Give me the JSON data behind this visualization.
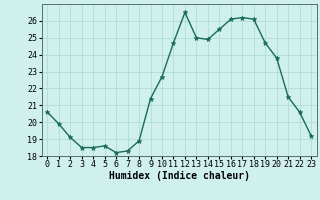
{
  "x": [
    0,
    1,
    2,
    3,
    4,
    5,
    6,
    7,
    8,
    9,
    10,
    11,
    12,
    13,
    14,
    15,
    16,
    17,
    18,
    19,
    20,
    21,
    22,
    23
  ],
  "y": [
    20.6,
    19.9,
    19.1,
    18.5,
    18.5,
    18.6,
    18.2,
    18.3,
    18.9,
    21.4,
    22.7,
    24.7,
    26.5,
    25.0,
    24.9,
    25.5,
    26.1,
    26.2,
    26.1,
    24.7,
    23.8,
    21.5,
    20.6,
    19.2
  ],
  "line_color": "#1a6b5a",
  "marker": "*",
  "marker_size": 3.5,
  "bg_color": "#cff0ec",
  "grid_color": "#aad8d3",
  "xlabel": "Humidex (Indice chaleur)",
  "ylim": [
    18,
    27
  ],
  "xlim": [
    -0.5,
    23.5
  ],
  "yticks": [
    18,
    19,
    20,
    21,
    22,
    23,
    24,
    25,
    26
  ],
  "xticks": [
    0,
    1,
    2,
    3,
    4,
    5,
    6,
    7,
    8,
    9,
    10,
    11,
    12,
    13,
    14,
    15,
    16,
    17,
    18,
    19,
    20,
    21,
    22,
    23
  ],
  "label_fontsize": 7,
  "tick_fontsize": 6
}
